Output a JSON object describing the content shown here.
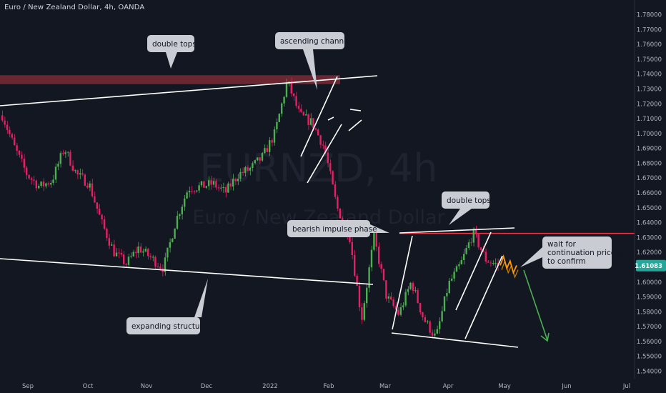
{
  "header": {
    "title": "Euro / New Zealand Dollar, 4h, OANDA"
  },
  "watermark": {
    "symbol": "EURNZD, 4h",
    "name": "Euro / New Zealand Dollar"
  },
  "colors": {
    "background": "#131722",
    "bull": "#4caf50",
    "bear": "#e91e63",
    "projection": "#ff9800",
    "arrow": "#4caf50",
    "resistance_line": "#f23645",
    "resistance_zone": "#7a2a35",
    "price_badge": "#26a69a",
    "callout_bg": "#c9ccd3",
    "axis_text": "#b2b5be"
  },
  "annotations": [
    "double tops",
    "ascending channel",
    "double tops",
    "bearish impulse phase",
    "wait for continuation price action to confirm",
    "expanding structure"
  ],
  "chart_data": {
    "type": "candlestick",
    "symbol": "EURNZD",
    "timeframe": "4h",
    "source": "OANDA",
    "last_price": "1.61083",
    "ylim": [
      1.535,
      1.786
    ],
    "y_ticks": [
      "1.78000",
      "1.77000",
      "1.76000",
      "1.75000",
      "1.74000",
      "1.73000",
      "1.72000",
      "1.71000",
      "1.70000",
      "1.69000",
      "1.68000",
      "1.67000",
      "1.66000",
      "1.65000",
      "1.64000",
      "1.63000",
      "1.62000",
      "1.61000",
      "1.60000",
      "1.59000",
      "1.58000",
      "1.57000",
      "1.56000",
      "1.55000",
      "1.54000"
    ],
    "x_ticks": [
      "Sep",
      "Oct",
      "Nov",
      "Dec",
      "2022",
      "Feb",
      "Mar",
      "Apr",
      "May",
      "Jun",
      "Jul"
    ],
    "price_path": [
      [
        "Sep",
        1.712
      ],
      [
        "Sep",
        1.69
      ],
      [
        "Sep",
        1.672
      ],
      [
        "Sep",
        1.664
      ],
      [
        "Oct",
        1.668
      ],
      [
        "Oct",
        1.69
      ],
      [
        "Oct",
        1.672
      ],
      [
        "Oct",
        1.666
      ],
      [
        "Oct",
        1.64
      ],
      [
        "Nov",
        1.62
      ],
      [
        "Nov",
        1.612
      ],
      [
        "Nov",
        1.623
      ],
      [
        "Nov",
        1.616
      ],
      [
        "Dec",
        1.609
      ],
      [
        "Dec",
        1.641
      ],
      [
        "Dec",
        1.663
      ],
      [
        "Dec",
        1.664
      ],
      [
        "Dec",
        1.666
      ],
      [
        "Dec",
        1.66
      ],
      [
        "2022",
        1.672
      ],
      [
        "2022",
        1.676
      ],
      [
        "2022",
        1.684
      ],
      [
        "Feb",
        1.7
      ],
      [
        "Feb",
        1.735
      ],
      [
        "Feb",
        1.712
      ],
      [
        "Feb",
        1.707
      ],
      [
        "Feb",
        1.69
      ],
      [
        "Mar",
        1.65
      ],
      [
        "Mar",
        1.632
      ],
      [
        "Mar",
        1.575
      ],
      [
        "Mar",
        1.63
      ],
      [
        "Mar",
        1.59
      ],
      [
        "Apr",
        1.578
      ],
      [
        "Apr",
        1.6
      ],
      [
        "Apr",
        1.575
      ],
      [
        "Apr",
        1.562
      ],
      [
        "Apr",
        1.598
      ],
      [
        "Apr",
        1.612
      ],
      [
        "May",
        1.633
      ],
      [
        "May",
        1.615
      ],
      [
        "May",
        1.611
      ]
    ],
    "projection": [
      1.611,
      1.617,
      1.609,
      1.614,
      1.606,
      1.611
    ],
    "levels": {
      "resistance_zone": [
        1.733,
        1.739
      ],
      "resistance_line": 1.6325
    }
  }
}
